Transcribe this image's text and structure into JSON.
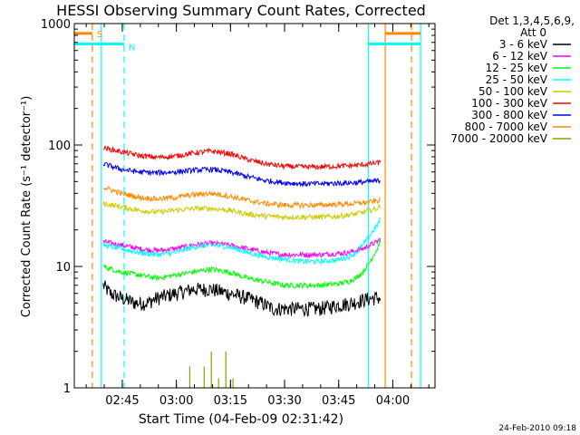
{
  "chart_data": {
    "type": "line",
    "title": "HESSI Observing Summary Count Rates, Corrected",
    "xlabel": "Start Time (04-Feb-09 02:31:42)",
    "ylabel": "Corrected Count Rate (s⁻¹ detector⁻¹)",
    "footer_date": "24-Feb-2010 09:18",
    "yscale": "log",
    "ylim": [
      1,
      1000
    ],
    "xlim_minutes": [
      0,
      100
    ],
    "y_ticks": [
      {
        "value": 1,
        "label": "1"
      },
      {
        "value": 10,
        "label": "10"
      },
      {
        "value": 100,
        "label": "100"
      },
      {
        "value": 1000,
        "label": "1000"
      }
    ],
    "x_ticks": [
      {
        "minute": 13.3,
        "label": "02:45"
      },
      {
        "minute": 28.3,
        "label": "03:00"
      },
      {
        "minute": 43.3,
        "label": "03:15"
      },
      {
        "minute": 58.3,
        "label": "03:30"
      },
      {
        "minute": 73.3,
        "label": "03:45"
      },
      {
        "minute": 88.3,
        "label": "04:00"
      }
    ],
    "legend": {
      "header_line1": "Det 1,3,4,5,6,9,",
      "header_line2": "Att 0",
      "placement": "right"
    },
    "series": [
      {
        "name": "3 - 6 keV",
        "color": "#000000",
        "x": [
          8,
          10,
          13,
          17,
          20,
          23,
          28,
          33,
          38,
          43,
          48,
          52,
          55,
          58,
          63,
          68,
          73,
          77,
          80,
          83,
          85
        ],
        "y": [
          7,
          6,
          5.5,
          5,
          5,
          5.5,
          6,
          6.5,
          6.5,
          6,
          5.5,
          5,
          4.5,
          4.5,
          4.5,
          4.5,
          4.8,
          5,
          5.3,
          5.5,
          5.5
        ]
      },
      {
        "name": "6 - 12 keV",
        "color": "#ff00ff",
        "x": [
          8,
          13,
          18,
          23,
          28,
          33,
          38,
          43,
          48,
          53,
          58,
          63,
          68,
          73,
          76,
          78,
          80,
          82,
          84,
          85
        ],
        "y": [
          16,
          15,
          14,
          13.5,
          14,
          15,
          15.5,
          15,
          14,
          13,
          12.5,
          12.5,
          12.5,
          12.8,
          13,
          13.5,
          14,
          15,
          16,
          17
        ]
      },
      {
        "name": "12 - 25 keV",
        "color": "#00ff00",
        "x": [
          8,
          13,
          18,
          23,
          28,
          33,
          38,
          43,
          48,
          53,
          58,
          63,
          68,
          73,
          76,
          78,
          80,
          82,
          84,
          85
        ],
        "y": [
          10,
          9,
          8.5,
          8,
          8.5,
          9,
          9.5,
          9,
          8,
          7.5,
          7,
          7,
          7,
          7.2,
          7.5,
          8,
          9,
          11,
          14,
          17
        ]
      },
      {
        "name": "25 - 50 keV",
        "color": "#00ffff",
        "x": [
          8,
          13,
          18,
          23,
          28,
          33,
          38,
          43,
          48,
          53,
          58,
          63,
          68,
          73,
          76,
          78,
          80,
          82,
          84,
          85
        ],
        "y": [
          15,
          14,
          13,
          12.5,
          13,
          14.5,
          15,
          14.5,
          13,
          12,
          11.5,
          11,
          11,
          11.3,
          12,
          13,
          15,
          18,
          22,
          25
        ]
      },
      {
        "name": "50 - 100 keV",
        "color": "#cccc00",
        "x": [
          8,
          13,
          18,
          23,
          28,
          33,
          38,
          43,
          48,
          53,
          58,
          63,
          68,
          73,
          76,
          78,
          80,
          82,
          84,
          85
        ],
        "y": [
          33,
          31,
          29,
          28,
          29,
          30,
          30,
          29,
          27,
          26,
          25.5,
          25.5,
          25.5,
          25.8,
          26.5,
          27,
          28,
          29,
          30,
          32
        ]
      },
      {
        "name": "100 - 300 keV",
        "color": "#ff0000",
        "x": [
          8,
          13,
          18,
          23,
          28,
          33,
          38,
          43,
          48,
          53,
          58,
          63,
          68,
          73,
          78,
          82,
          85
        ],
        "y": [
          95,
          88,
          82,
          79,
          81,
          86,
          89,
          85,
          76,
          70,
          67,
          66,
          66,
          67,
          68,
          70,
          72
        ]
      },
      {
        "name": "300 - 800 keV",
        "color": "#0000ff",
        "x": [
          8,
          13,
          18,
          23,
          28,
          33,
          38,
          43,
          48,
          53,
          58,
          63,
          68,
          73,
          78,
          82,
          85
        ],
        "y": [
          70,
          63,
          60,
          59,
          60,
          62,
          63,
          60,
          55,
          51,
          49,
          48,
          48,
          48.5,
          49,
          50,
          51
        ]
      },
      {
        "name": "800 - 7000 keV",
        "color": "#ff8800",
        "x": [
          8,
          13,
          18,
          23,
          28,
          33,
          38,
          43,
          48,
          53,
          58,
          63,
          68,
          73,
          78,
          82,
          85
        ],
        "y": [
          45,
          40,
          37,
          36,
          37,
          39,
          40,
          38,
          35,
          33,
          32,
          32,
          32,
          32.5,
          33,
          34,
          35
        ]
      },
      {
        "name": "7000 - 20000 keV",
        "color": "#999900",
        "x": [
          32,
          36,
          38,
          40,
          42,
          44
        ],
        "y": [
          1.5,
          1.5,
          2.0,
          1.2,
          2.0,
          1.2
        ]
      }
    ],
    "markers": {
      "saa_label": "S",
      "night_label": "N",
      "saa_color": "#ff8800",
      "night_color": "#00ffff",
      "vlines": [
        {
          "minute": 5.0,
          "kind": "saa",
          "style": "dashed"
        },
        {
          "minute": 7.5,
          "kind": "night",
          "style": "solid"
        },
        {
          "minute": 13.8,
          "kind": "night",
          "style": "dashed"
        },
        {
          "minute": 81.5,
          "kind": "night",
          "style": "solid"
        },
        {
          "minute": 86.2,
          "kind": "saa",
          "style": "solid"
        },
        {
          "minute": 93.5,
          "kind": "saa",
          "style": "dashed"
        },
        {
          "minute": 96.0,
          "kind": "night",
          "style": "solid"
        }
      ],
      "bars": [
        {
          "x1": 0,
          "x2": 5.0,
          "kind": "saa",
          "level": 830
        },
        {
          "x1": 0,
          "x2": 13.8,
          "kind": "night",
          "level": 680
        },
        {
          "x1": 81.5,
          "x2": 96.0,
          "kind": "night",
          "level": 680
        },
        {
          "x1": 86.2,
          "x2": 96.0,
          "kind": "saa",
          "level": 830
        }
      ]
    }
  }
}
